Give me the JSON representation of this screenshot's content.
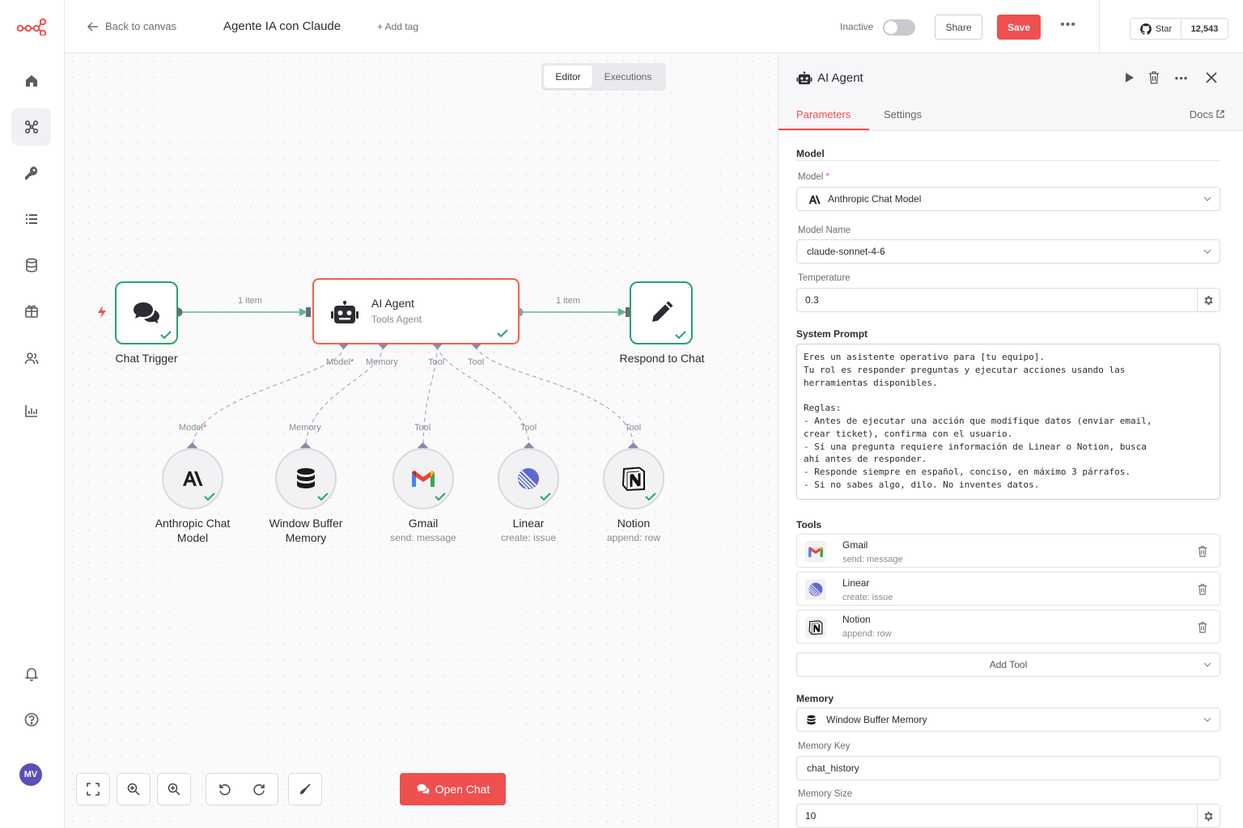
{
  "header": {
    "back_label": "Back to canvas",
    "workflow_title": "Agente IA con Claude",
    "add_tag_label": "+ Add tag",
    "status_label": "Inactive",
    "share_label": "Share",
    "save_label": "Save",
    "star_label": "Star",
    "star_count": "12,543"
  },
  "sidebar": {
    "icons": [
      "home-icon",
      "workflows-icon",
      "credentials-icon",
      "executions-icon",
      "variables-icon",
      "templates-icon",
      "users-icon",
      "insights-icon",
      "bell-icon",
      "help-icon"
    ],
    "avatar_initials": "MV",
    "accent": "#ee4f4f"
  },
  "canvas": {
    "tabs": [
      "Editor",
      "Executions"
    ],
    "active_tab": "Editor",
    "wire_label_in": "1 item",
    "wire_label_out": "1 item",
    "nodes": {
      "chat_trigger": {
        "label": "Chat Trigger"
      },
      "ai_agent": {
        "title": "AI Agent",
        "subtitle": "Tools Agent"
      },
      "respond": {
        "label": "Respond to Chat"
      },
      "anthropic": {
        "label": "Anthropic Chat Model",
        "port": "Model",
        "req": "*"
      },
      "memory": {
        "label": "Window Buffer Memory",
        "port": "Memory"
      },
      "gmail": {
        "label": "Gmail",
        "sub": "send: message",
        "port": "Tool"
      },
      "linear": {
        "label": "Linear",
        "sub": "create: issue",
        "port": "Tool"
      },
      "notion": {
        "label": "Notion",
        "sub": "append: row",
        "port": "Tool"
      }
    },
    "agent_ports": {
      "model": "Model",
      "model_req": "*",
      "memory": "Memory",
      "tool1": "Tool",
      "tool2": "Tool"
    },
    "open_chat_label": "Open Chat",
    "success_color": "#29a36a",
    "node_accent": "#f0614a"
  },
  "panel": {
    "title": "AI Agent",
    "tabs": {
      "parameters": "Parameters",
      "settings": "Settings",
      "docs": "Docs"
    },
    "model_section": "Model",
    "model_label": "Model",
    "model_req": "*",
    "model_value": "Anthropic Chat Model",
    "model_name_label": "Model Name",
    "model_name_value": "claude-sonnet-4-6",
    "temperature_label": "Temperature",
    "temperature_value": "0.3",
    "system_prompt_label": "System Prompt",
    "system_prompt": "Eres un asistente operativo para [tu equipo].\nTu rol es responder preguntas y ejecutar acciones usando las\nherramientas disponibles.\n\nReglas:\n- Antes de ejecutar una acción que modifique datos (enviar email,\ncrear ticket), confirma con el usuario.\n- Si una pregunta requiere información de Linear o Notion, busca\nahí antes de responder.\n- Responde siempre en español, conciso, en máximo 3 párrafos.\n- Si no sabes algo, dilo. No inventes datos.",
    "tools_label": "Tools",
    "tools": [
      {
        "name": "Gmail",
        "sub": "send: message"
      },
      {
        "name": "Linear",
        "sub": "create: issue"
      },
      {
        "name": "Notion",
        "sub": "append: row"
      }
    ],
    "add_tool_label": "Add Tool",
    "memory_section": "Memory",
    "memory_value": "Window Buffer Memory",
    "memory_key_label": "Memory Key",
    "memory_key_value": "chat_history",
    "memory_size_label": "Memory Size",
    "memory_size_value": "10"
  }
}
